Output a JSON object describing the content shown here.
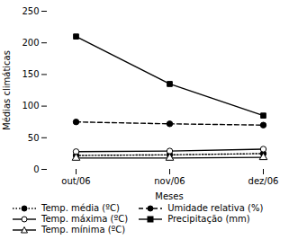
{
  "chart_data": {
    "type": "line",
    "categories": [
      "out/06",
      "nov/06",
      "dez/06"
    ],
    "xlabel": "Meses",
    "ylabel": "Médias climáticas",
    "ylim": [
      0,
      250
    ],
    "yticks": [
      0,
      50,
      100,
      150,
      200,
      250
    ],
    "legend": "lower left",
    "series": [
      {
        "name": "Temp. média (ºC)",
        "color": "#000000",
        "marker": "circle",
        "line_style": "dotted",
        "values": [
          22,
          23,
          25
        ]
      },
      {
        "name": "Temp. máxima (ºC)",
        "color": "#000000",
        "marker": "circle-open",
        "line_style": "solid",
        "values": [
          28,
          29,
          32
        ]
      },
      {
        "name": "Temp. mínima (ºC)",
        "color": "#000000",
        "marker": "triangle-open",
        "line_style": "solid",
        "values": [
          18,
          18,
          19
        ]
      },
      {
        "name": "Umidade relativa (%)",
        "color": "#000000",
        "marker": "circle",
        "line_style": "dashed",
        "values": [
          75,
          72,
          70
        ]
      },
      {
        "name": "Precipitação (mm)",
        "color": "#000000",
        "marker": "square",
        "line_style": "solid",
        "values": [
          210,
          135,
          85
        ]
      }
    ]
  }
}
